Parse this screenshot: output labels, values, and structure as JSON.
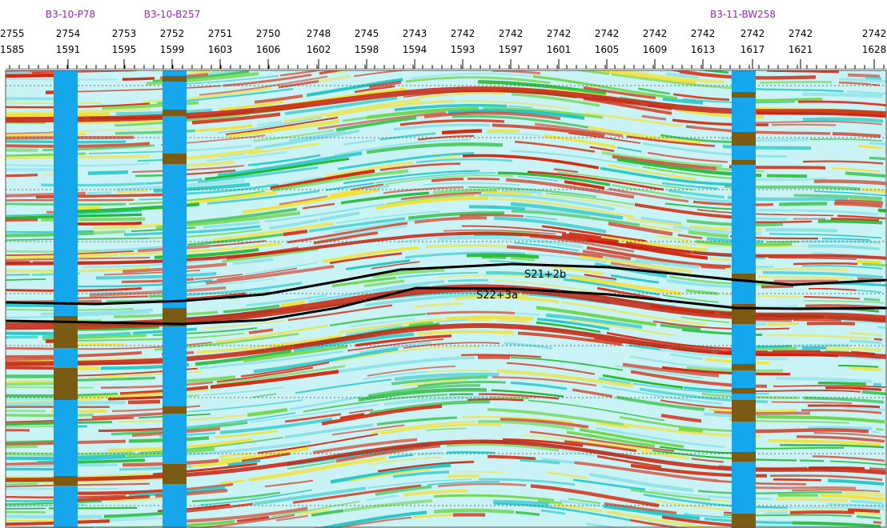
{
  "wells": [
    "B3-10-P78",
    "B3-10-B257",
    "B3-11-BW258"
  ],
  "columns": [
    {
      "line": "2755",
      "trace": "1585"
    },
    {
      "line": "2754",
      "trace": "1591"
    },
    {
      "line": "2753",
      "trace": "1595"
    },
    {
      "line": "2752",
      "trace": "1599"
    },
    {
      "line": "2751",
      "trace": "1603"
    },
    {
      "line": "2750",
      "trace": "1606"
    },
    {
      "line": "2748",
      "trace": "1602"
    },
    {
      "line": "2745",
      "trace": "1598"
    },
    {
      "line": "2743",
      "trace": "1594"
    },
    {
      "line": "2742",
      "trace": "1593"
    },
    {
      "line": "2742",
      "trace": "1597"
    },
    {
      "line": "2742",
      "trace": "1601"
    },
    {
      "line": "2742",
      "trace": "1605"
    },
    {
      "line": "2742",
      "trace": "1609"
    },
    {
      "line": "2742",
      "trace": "1613"
    },
    {
      "line": "2742",
      "trace": "1617"
    },
    {
      "line": "2742",
      "trace": "1621"
    },
    {
      "line": "2742",
      "trace": "1628"
    }
  ],
  "horizons": [
    "S21+2b",
    "S22+3a"
  ]
}
